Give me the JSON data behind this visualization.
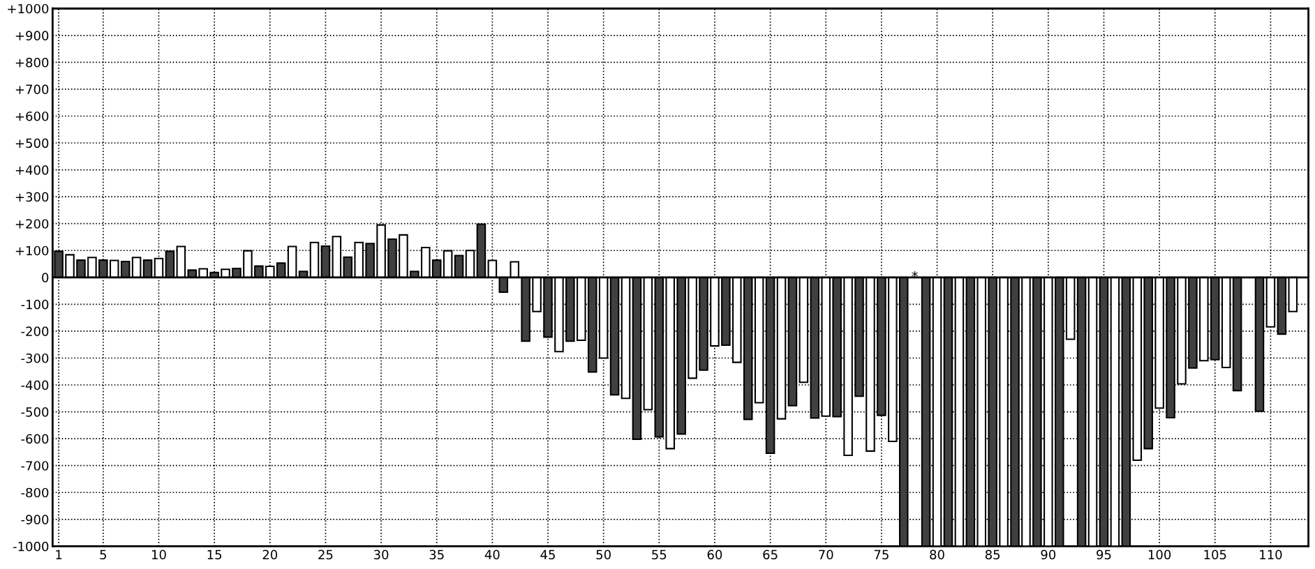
{
  "chart_data": {
    "type": "bar",
    "x": [
      1,
      2,
      3,
      4,
      5,
      6,
      7,
      8,
      9,
      10,
      11,
      12,
      13,
      14,
      15,
      16,
      17,
      18,
      19,
      20,
      21,
      22,
      23,
      24,
      25,
      26,
      27,
      28,
      29,
      30,
      31,
      32,
      33,
      34,
      35,
      36,
      37,
      38,
      39,
      40,
      41,
      42,
      43,
      44,
      45,
      46,
      47,
      48,
      49,
      50,
      51,
      52,
      53,
      54,
      55,
      56,
      57,
      58,
      59,
      60,
      61,
      62,
      63,
      64,
      65,
      66,
      67,
      68,
      69,
      70,
      71,
      72,
      73,
      74,
      75,
      76,
      77,
      78,
      79,
      80,
      81,
      82,
      83,
      84,
      85,
      86,
      87,
      88,
      89,
      90,
      91,
      92,
      93,
      94,
      95,
      96,
      97,
      98,
      99,
      100,
      101,
      102,
      103,
      104,
      105,
      106,
      107,
      108,
      109,
      110,
      111,
      112
    ],
    "values": [
      97,
      84,
      64,
      74,
      64,
      63,
      59,
      74,
      64,
      70,
      97,
      115,
      27,
      32,
      18,
      30,
      33,
      99,
      42,
      41,
      53,
      115,
      22,
      130,
      116,
      152,
      75,
      130,
      126,
      195,
      142,
      158,
      22,
      111,
      64,
      99,
      81,
      100,
      198,
      63,
      -55,
      58,
      -237,
      -127,
      -222,
      -276,
      -237,
      -234,
      -352,
      -300,
      -437,
      -450,
      -602,
      -492,
      -593,
      -637,
      -583,
      -375,
      -345,
      -255,
      -252,
      -316,
      -528,
      -466,
      -654,
      -526,
      -477,
      -390,
      -523,
      -516,
      -518,
      -662,
      -442,
      -646,
      -513,
      -610,
      -1000,
      0,
      -1000,
      -1000,
      -1000,
      -1000,
      -1000,
      -1000,
      -1000,
      -1000,
      -1000,
      -1000,
      -1000,
      -1000,
      -1000,
      -230,
      -1000,
      -1000,
      -1000,
      -1000,
      -1000,
      -680,
      -637,
      -486,
      -522,
      -396,
      -337,
      -310,
      -306,
      -335,
      -421,
      null,
      -498,
      -184,
      -211,
      -127
    ],
    "colors": [
      "#404040",
      "#ffffff",
      "#404040",
      "#ffffff",
      "#404040",
      "#ffffff",
      "#404040",
      "#ffffff",
      "#404040",
      "#ffffff",
      "#404040",
      "#ffffff",
      "#404040",
      "#ffffff",
      "#404040",
      "#ffffff",
      "#404040",
      "#ffffff",
      "#404040",
      "#ffffff",
      "#404040",
      "#ffffff",
      "#404040",
      "#ffffff",
      "#404040",
      "#ffffff",
      "#404040",
      "#ffffff",
      "#404040",
      "#ffffff",
      "#404040",
      "#ffffff",
      "#404040",
      "#ffffff",
      "#404040",
      "#ffffff",
      "#404040",
      "#ffffff",
      "#404040",
      "#ffffff",
      "#404040",
      "#ffffff",
      "#404040",
      "#ffffff",
      "#404040",
      "#ffffff",
      "#404040",
      "#ffffff",
      "#404040",
      "#ffffff",
      "#404040",
      "#ffffff",
      "#404040",
      "#ffffff",
      "#404040",
      "#ffffff",
      "#404040",
      "#ffffff",
      "#404040",
      "#ffffff",
      "#404040",
      "#ffffff",
      "#404040",
      "#ffffff",
      "#404040",
      "#ffffff",
      "#404040",
      "#ffffff",
      "#404040",
      "#ffffff",
      "#404040",
      "#ffffff",
      "#404040",
      "#ffffff",
      "#404040",
      "#ffffff",
      "#404040",
      "#000000",
      "#404040",
      "#ffffff",
      "#404040",
      "#ffffff",
      "#404040",
      "#ffffff",
      "#404040",
      "#ffffff",
      "#404040",
      "#ffffff",
      "#404040",
      "#ffffff",
      "#404040",
      "#ffffff",
      "#404040",
      "#ffffff",
      "#404040",
      "#ffffff",
      "#404040",
      "#ffffff",
      "#404040",
      "#ffffff",
      "#404040",
      "#ffffff",
      "#404040",
      "#ffffff",
      "#404040",
      "#ffffff",
      "#404040",
      "#ffffff",
      "#404040",
      "#ffffff",
      "#404040",
      "#ffffff"
    ],
    "annotations": [
      {
        "text": "*",
        "x": 78,
        "y": 0
      }
    ],
    "xlim": [
      0.45,
      113.4
    ],
    "xticks": [
      1,
      5,
      10,
      15,
      20,
      25,
      30,
      35,
      40,
      45,
      50,
      55,
      60,
      65,
      70,
      75,
      80,
      85,
      90,
      95,
      100,
      105,
      110
    ],
    "ylim": [
      -1000,
      1000
    ],
    "yticks": [
      {
        "value": 1000,
        "label": "+1000"
      },
      {
        "value": 900,
        "label": "+900"
      },
      {
        "value": 800,
        "label": "+800"
      },
      {
        "value": 700,
        "label": "+700"
      },
      {
        "value": 600,
        "label": "+600"
      },
      {
        "value": 500,
        "label": "+500"
      },
      {
        "value": 400,
        "label": "+400"
      },
      {
        "value": 300,
        "label": "+300"
      },
      {
        "value": 200,
        "label": "+200"
      },
      {
        "value": 100,
        "label": "+100"
      },
      0,
      -100,
      -200,
      -300,
      -400,
      -500,
      -600,
      -700,
      -800,
      -900,
      -1000
    ],
    "grid": true,
    "line_style": "dotted"
  }
}
